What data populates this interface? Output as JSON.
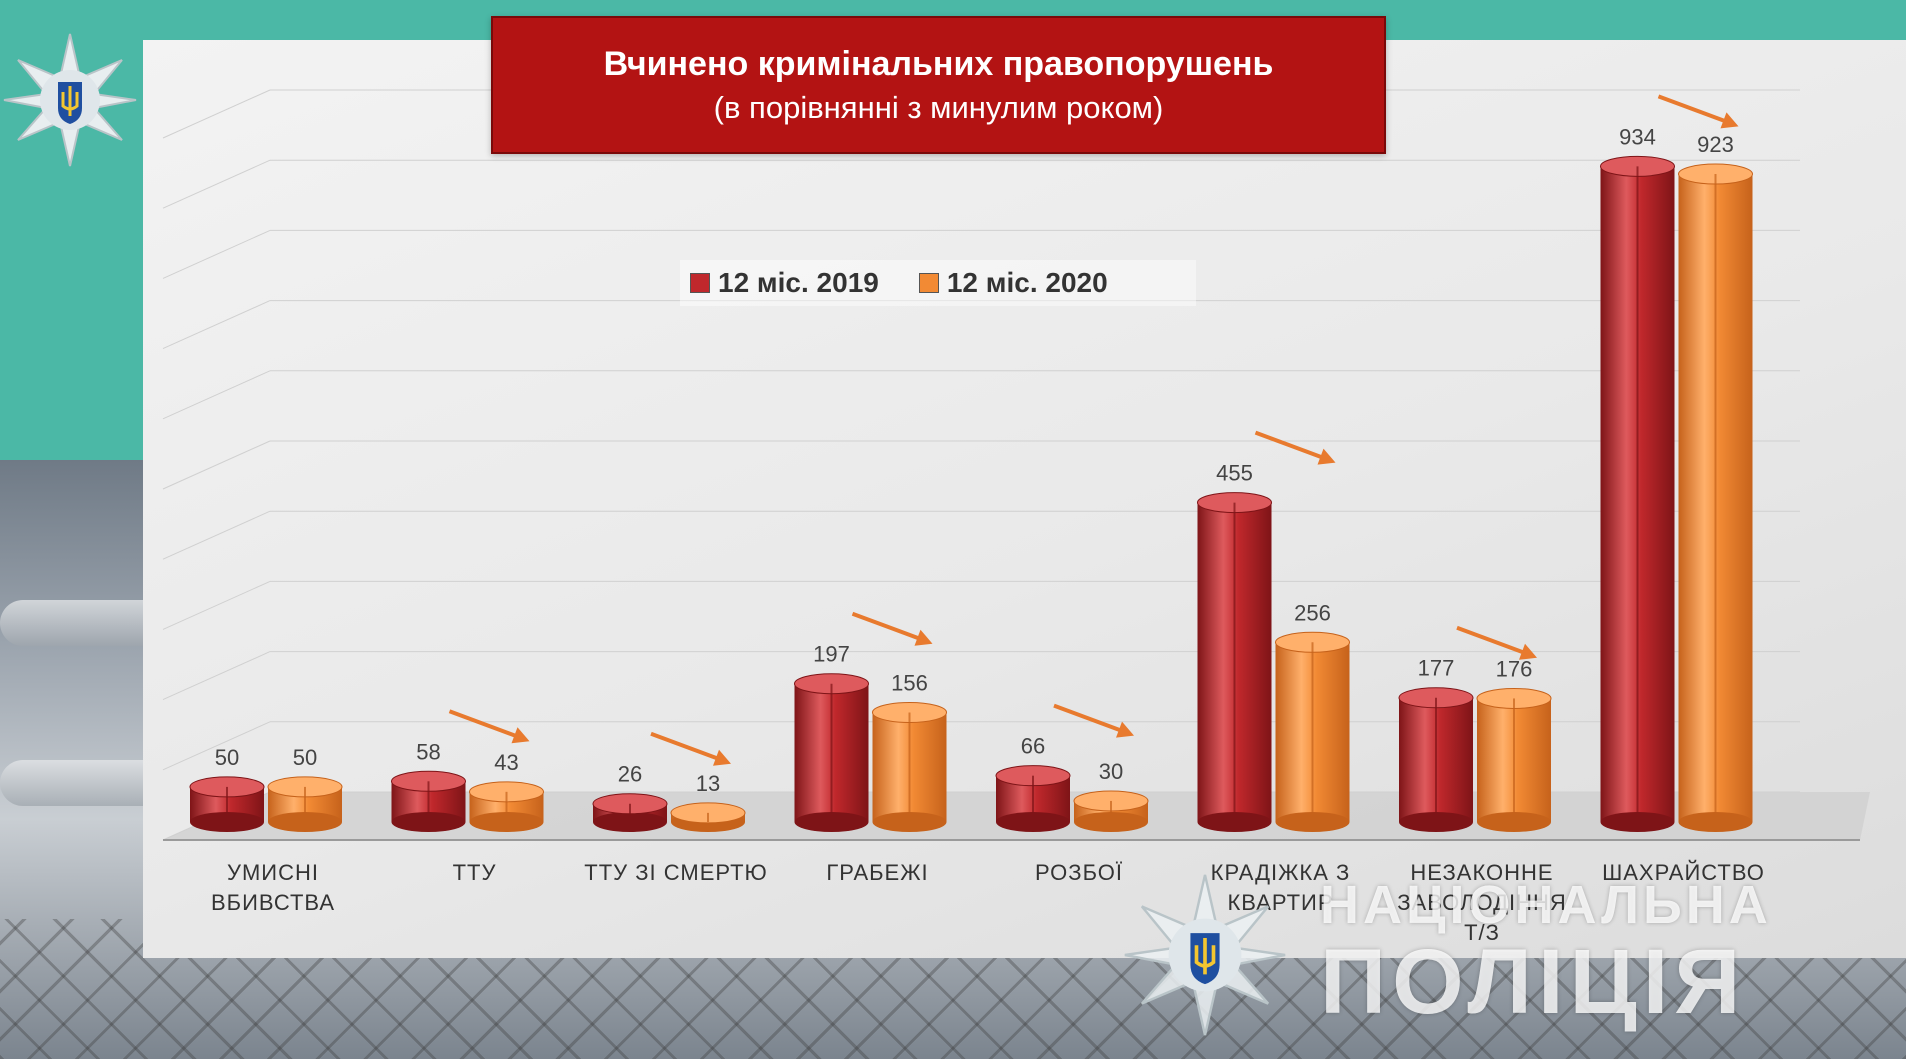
{
  "title": "Вчинено кримінальних правопорушень",
  "subtitle": "(в порівнянні з минулим роком)",
  "colors": {
    "series_2019": "#c0282c",
    "series_2020": "#f28a34",
    "title_bg": "#b31313",
    "arrow": "#e87a2e"
  },
  "icons": [
    "police-star-badge-icon",
    "trend-arrow-icon"
  ],
  "watermark": {
    "line1": "НАЦІОНАЛЬНА",
    "line2": "ПОЛІЦІЯ"
  },
  "chart_data": {
    "type": "bar",
    "title": "Вчинено кримінальних правопорушень",
    "subtitle": "(в порівнянні з минулим роком)",
    "categories": [
      [
        "УМИСНІ",
        "ВБИВСТВА"
      ],
      [
        "ТТУ"
      ],
      [
        "ТТУ ЗІ СМЕРТЮ"
      ],
      [
        "ГРАБЕЖІ"
      ],
      [
        "РОЗБОЇ"
      ],
      [
        "КРАДІЖКА З",
        "КВАРТИР"
      ],
      [
        "НЕЗАКОННЕ",
        "ЗАВОЛОДІННЯ",
        "Т/З"
      ],
      [
        "ШАХРАЙСТВО"
      ]
    ],
    "series": [
      {
        "name": "12 міс. 2019",
        "values": [
          50,
          58,
          26,
          197,
          66,
          455,
          177,
          934
        ]
      },
      {
        "name": "12 міс. 2020",
        "values": [
          50,
          43,
          13,
          156,
          30,
          256,
          176,
          923
        ]
      }
    ],
    "ylim": [
      0,
      1000
    ],
    "grid": true,
    "legend": "top-center",
    "style": "3d-cylinder"
  }
}
